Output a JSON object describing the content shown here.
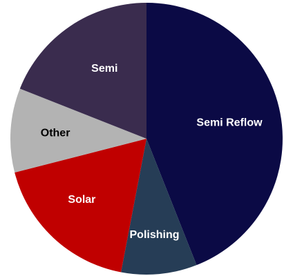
{
  "chart_data": {
    "type": "pie",
    "title": "",
    "unit": "percent",
    "slices": [
      {
        "label": "Semi Reflow",
        "value": 44,
        "color": "#0b0a45",
        "text_color": "#ffffff"
      },
      {
        "label": "Polishing",
        "value": 9,
        "color": "#263d56",
        "text_color": "#ffffff"
      },
      {
        "label": "Solar",
        "value": 18,
        "color": "#c00000",
        "text_color": "#ffffff"
      },
      {
        "label": "Other",
        "value": 10,
        "color": "#b3b3b3",
        "text_color": "#000000"
      },
      {
        "label": "Semi",
        "value": 19,
        "color": "#3a2c4e",
        "text_color": "#ffffff"
      }
    ],
    "start_angle": "12 o'clock",
    "direction": "clockwise",
    "legend": "none",
    "labels": "on-slice"
  }
}
